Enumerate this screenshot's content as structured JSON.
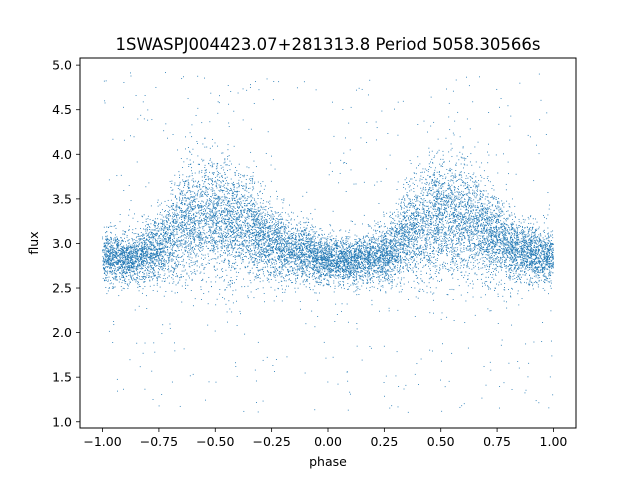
{
  "chart_data": {
    "type": "scatter",
    "title": "1SWASPJ004423.07+281313.8 Period 5058.30566s",
    "xlabel": "phase",
    "ylabel": "flux",
    "xlim": [
      -1.1,
      1.1
    ],
    "ylim": [
      0.93,
      5.08
    ],
    "xticks": [
      -1.0,
      -0.75,
      -0.5,
      -0.25,
      0.0,
      0.25,
      0.5,
      0.75,
      1.0
    ],
    "xtick_labels": [
      "−1.00",
      "−0.75",
      "−0.50",
      "−0.25",
      "0.00",
      "0.25",
      "0.50",
      "0.75",
      "1.00"
    ],
    "yticks": [
      1.0,
      1.5,
      2.0,
      2.5,
      3.0,
      3.5,
      4.0,
      4.5,
      5.0
    ],
    "ytick_labels": [
      "1.0",
      "1.5",
      "2.0",
      "2.5",
      "3.0",
      "3.5",
      "4.0",
      "4.5",
      "5.0"
    ],
    "marker_color": "#1f77b4",
    "grid": false,
    "series": [
      {
        "phase_range": [
          -1.0,
          1.0
        ],
        "profile": {
          "phase": [
            -1.0,
            -0.875,
            -0.75,
            -0.625,
            -0.5,
            -0.375,
            -0.25,
            -0.125,
            0.0,
            0.125,
            0.25,
            0.375,
            0.5,
            0.625,
            0.75,
            0.875,
            1.0
          ],
          "median_flux": [
            2.85,
            2.82,
            2.95,
            3.25,
            3.3,
            3.2,
            3.0,
            2.9,
            2.82,
            2.8,
            2.88,
            3.15,
            3.3,
            3.25,
            3.05,
            2.9,
            2.85
          ]
        },
        "core_range": [
          2.5,
          4.3
        ],
        "outlier_range": [
          1.1,
          4.95
        ]
      }
    ]
  }
}
